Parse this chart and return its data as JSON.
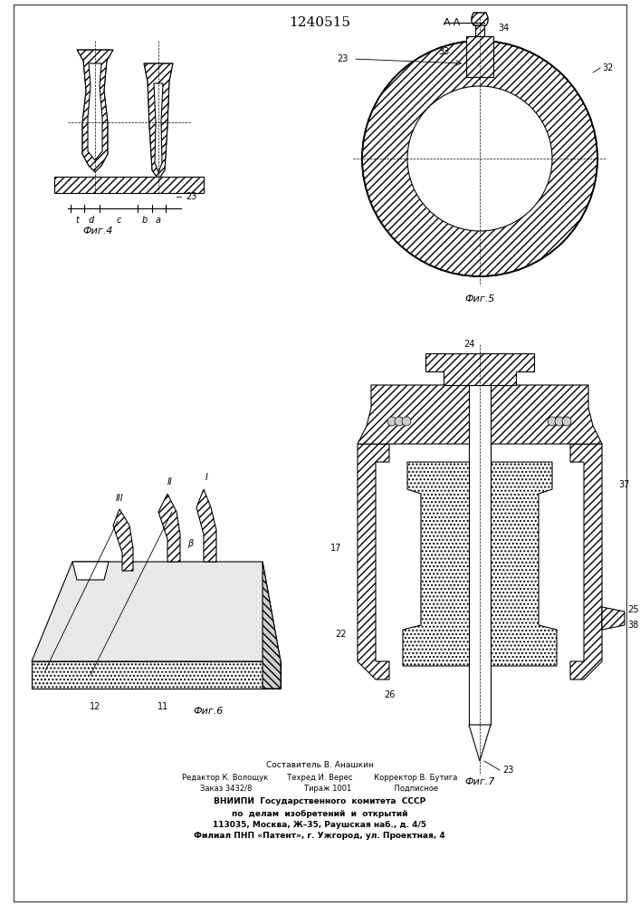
{
  "title": "1240515",
  "title_fontsize": 11,
  "bg_color": "#ffffff",
  "line_color": "#000000",
  "hatch_color": "#000000",
  "fig4_label": "Фиг.4",
  "fig5_label": "Фиг.5",
  "fig6_label": "Фиг.6",
  "fig7_label": "Фиг.7",
  "section_label": "А-А",
  "footer_lines": [
    "Составитель В. Анашкин",
    "Редактор К. Волощук        Техред И. Верес         Корректор В. Бутига",
    "Заказ 3432/8                      Тираж 1001                  Подписное",
    "ВНИИПИ  Государственного  комитета  СССР",
    "по  делам  изобретений  и  открытий",
    "113035, Москва, Ж–35, Раушская наб., д. 4/5",
    "Филиал ПНП «Патент», г. Ужгород, ул. Проектная, 4"
  ]
}
